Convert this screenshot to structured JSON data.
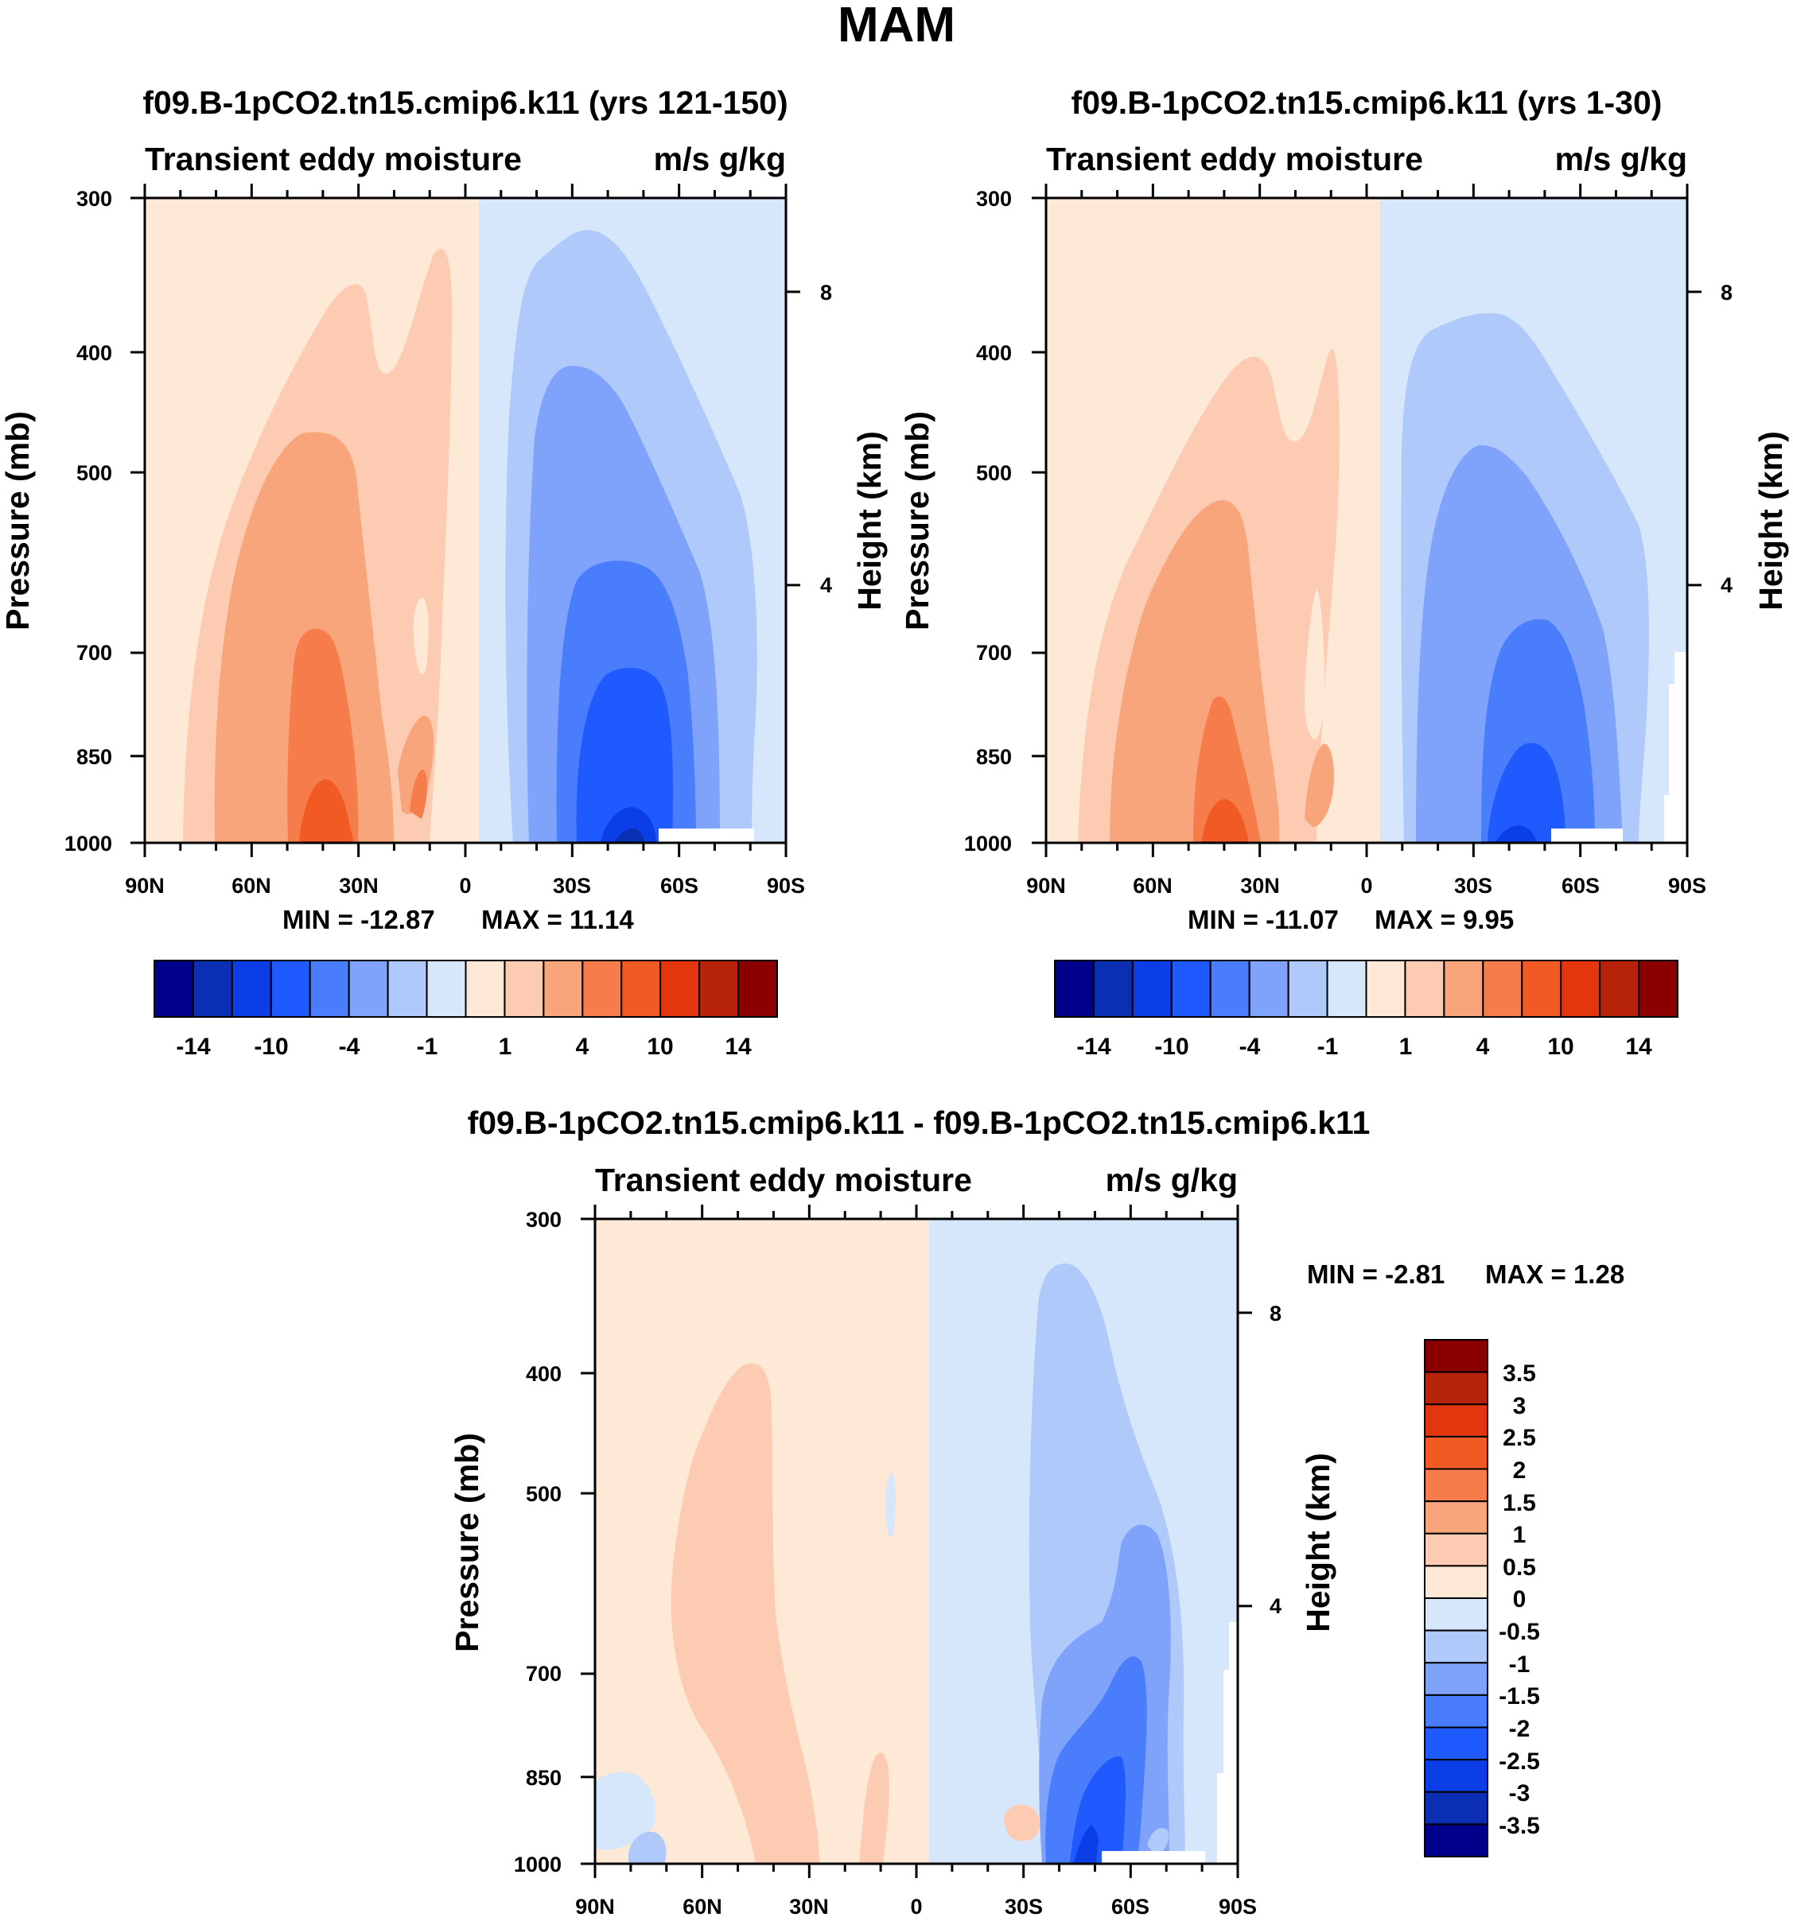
{
  "page_title": "MAM",
  "colors": [
    "#00008b",
    "#0a2fb3",
    "#0b3ee6",
    "#1f5aff",
    "#4a7dfb",
    "#7fa3fb",
    "#b0c9fb",
    "#d6e7fb",
    "#fde9d6",
    "#fccbb1",
    "#f9a57c",
    "#f67d4b",
    "#f15a22",
    "#e3360f",
    "#b7220b",
    "#8a0000"
  ],
  "chart_data": [
    {
      "type": "contour",
      "title": "f09.B-1pCO2.tn15.cmip6.k11 (yrs 121-150)",
      "left_subtitle": "Transient eddy moisture",
      "right_subtitle": "m/s g/kg",
      "xlabel": "",
      "ylabel": "Pressure (mb)",
      "ylabel_right": "Height (km)",
      "x_ticks": [
        "90N",
        "60N",
        "30N",
        "0",
        "30S",
        "60S",
        "90S"
      ],
      "y_ticks": [
        "300",
        "400",
        "500",
        "700",
        "850",
        "1000"
      ],
      "y_right_ticks": [
        "8",
        "4"
      ],
      "min_text": "MIN = -12.87",
      "max_text": "MAX =  11.14",
      "colorbar_labels": [
        "-14",
        "-10",
        "-4",
        "-1",
        "1",
        "4",
        "10",
        "14"
      ],
      "level_index": {
        "positive": [
          1,
          2,
          3
        ],
        "negative": [
          1,
          2,
          3,
          4,
          5
        ]
      }
    },
    {
      "type": "contour",
      "title": "f09.B-1pCO2.tn15.cmip6.k11 (yrs 1-30)",
      "left_subtitle": "Transient eddy moisture",
      "right_subtitle": "m/s g/kg",
      "xlabel": "",
      "ylabel": "Pressure (mb)",
      "ylabel_right": "Height (km)",
      "x_ticks": [
        "90N",
        "60N",
        "30N",
        "0",
        "30S",
        "60S",
        "90S"
      ],
      "y_ticks": [
        "300",
        "400",
        "500",
        "700",
        "850",
        "1000"
      ],
      "y_right_ticks": [
        "8",
        "4"
      ],
      "min_text": "MIN = -11.07",
      "max_text": "MAX =    9.95",
      "colorbar_labels": [
        "-14",
        "-10",
        "-4",
        "-1",
        "1",
        "4",
        "10",
        "14"
      ]
    },
    {
      "type": "contour",
      "title": "f09.B-1pCO2.tn15.cmip6.k11 - f09.B-1pCO2.tn15.cmip6.k11",
      "left_subtitle": "Transient eddy moisture",
      "right_subtitle": "m/s g/kg",
      "xlabel": "",
      "ylabel": "Pressure (mb)",
      "ylabel_right": "Height (km)",
      "x_ticks": [
        "90N",
        "60N",
        "30N",
        "0",
        "30S",
        "60S",
        "90S"
      ],
      "y_ticks": [
        "300",
        "400",
        "500",
        "700",
        "850",
        "1000"
      ],
      "y_right_ticks": [
        "8",
        "4"
      ],
      "min_text": "MIN =  -2.81",
      "max_text": "MAX =    1.28",
      "colorbar_labels": [
        "3.5",
        "3",
        "2.5",
        "2",
        "1.5",
        "1",
        "0.5",
        "0",
        "-0.5",
        "-1",
        "-1.5",
        "-2",
        "-2.5",
        "-3",
        "-3.5"
      ]
    }
  ]
}
